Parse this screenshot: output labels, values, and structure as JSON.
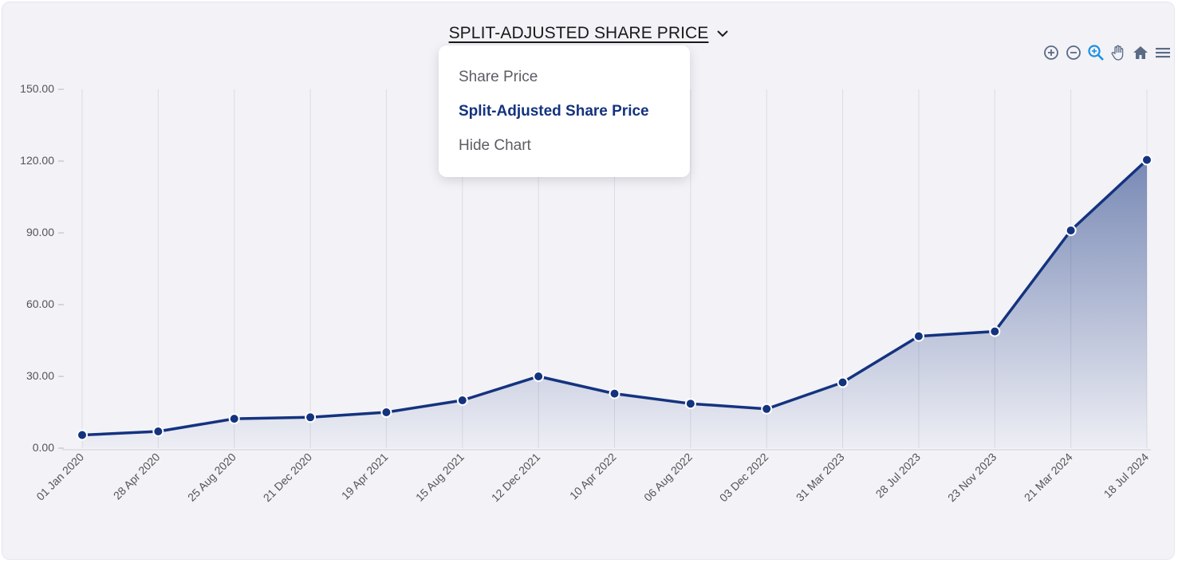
{
  "header": {
    "title": "SPLIT-ADJUSTED SHARE PRICE",
    "chevron_icon": "chevron-down-icon"
  },
  "toolbar": {
    "icons": [
      "zoom-in-icon",
      "zoom-out-icon",
      "zoom-select-icon",
      "pan-hand-icon",
      "home-reset-icon",
      "menu-icon"
    ],
    "active_icon": "zoom-select-icon"
  },
  "dropdown": {
    "items": [
      {
        "label": "Share Price",
        "active": false
      },
      {
        "label": "Split-Adjusted Share Price",
        "active": true
      },
      {
        "label": "Hide Chart",
        "active": false
      }
    ]
  },
  "colors": {
    "line": "#14337f",
    "area_top": "#14337f",
    "marker_stroke": "#ffffff",
    "grid": "#dcdce4",
    "active_tool": "#1a8fe3",
    "tool": "#5b6b85"
  },
  "chart_data": {
    "type": "area",
    "title": "SPLIT-ADJUSTED SHARE PRICE",
    "xlabel": "",
    "ylabel": "",
    "ylim": [
      0,
      150
    ],
    "yticks": [
      "0.00",
      "30.00",
      "60.00",
      "90.00",
      "120.00",
      "150.00"
    ],
    "ytick_values": [
      0,
      30,
      60,
      90,
      120,
      150
    ],
    "x": [
      "01 Jan 2020",
      "28 Apr 2020",
      "25 Aug 2020",
      "21 Dec 2020",
      "19 Apr 2021",
      "15 Aug 2021",
      "12 Dec 2021",
      "10 Apr 2022",
      "06 Aug 2022",
      "03 Dec 2022",
      "31 Mar 2023",
      "28 Jul 2023",
      "23 Nov 2023",
      "21 Mar 2024",
      "18 Jul 2024"
    ],
    "series": [
      {
        "values": [
          5.5,
          7.0,
          12.3,
          12.9,
          15.0,
          20.0,
          30.0,
          22.8,
          18.6,
          16.4,
          27.5,
          46.8,
          48.8,
          91.0,
          120.5
        ]
      }
    ],
    "grid": true,
    "legend": "none"
  }
}
